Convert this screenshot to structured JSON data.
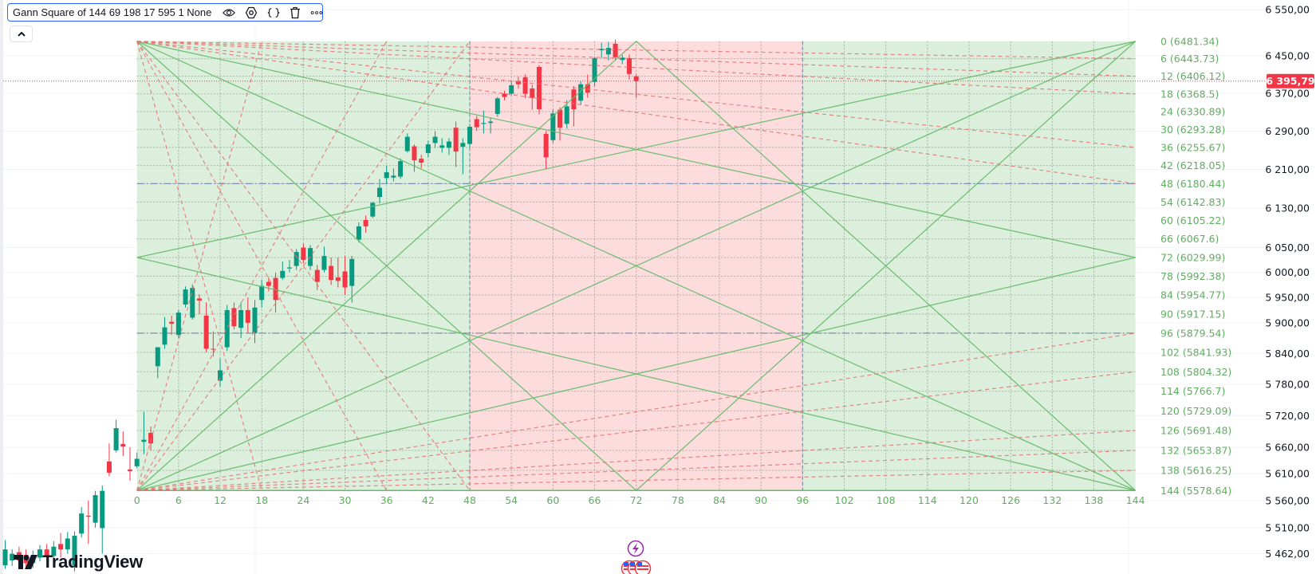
{
  "legend": {
    "title": "Gann Square of 144 69 198 17 595 1 None",
    "icons": [
      "eye-icon",
      "settings-icon",
      "source-code-icon",
      "trash-icon",
      "more-icon"
    ]
  },
  "collapse_button": {
    "icon": "chevron-up-icon"
  },
  "watermark": "TradingView",
  "colors": {
    "up": "#089981",
    "down": "#f23645",
    "gann_green_fill": "#dcefdc",
    "gann_red_fill": "#fcdcdc",
    "gann_line": "#66bb6a",
    "gann_dashed": "#e57373",
    "gann_label": "#5fae5f",
    "price_badge": "#f23645"
  },
  "price_axis": {
    "scale": "log",
    "ticks": [
      {
        "value": 6550,
        "label": "6 550,00"
      },
      {
        "value": 6450,
        "label": "6 450,00"
      },
      {
        "value": 6370,
        "label": "6 370,00"
      },
      {
        "value": 6290,
        "label": "6 290,00"
      },
      {
        "value": 6210,
        "label": "6 210,00"
      },
      {
        "value": 6130,
        "label": "6 130,00"
      },
      {
        "value": 6050,
        "label": "6 050,00"
      },
      {
        "value": 6000,
        "label": "6 000,00"
      },
      {
        "value": 5950,
        "label": "5 950,00"
      },
      {
        "value": 5900,
        "label": "5 900,00"
      },
      {
        "value": 5840,
        "label": "5 840,00"
      },
      {
        "value": 5780,
        "label": "5 780,00"
      },
      {
        "value": 5720,
        "label": "5 720,00"
      },
      {
        "value": 5660,
        "label": "5 660,00"
      },
      {
        "value": 5610,
        "label": "5 610,00"
      },
      {
        "value": 5560,
        "label": "5 560,00"
      },
      {
        "value": 5510,
        "label": "5 510,00"
      },
      {
        "value": 5462,
        "label": "5 462,00"
      }
    ],
    "last_price": {
      "value": 6395.79,
      "label": "6 395,79"
    }
  },
  "bottom_icons": [
    "lightning-icon",
    "us-flag-icon"
  ],
  "chart_data": {
    "type": "candlestick",
    "yscale": "log",
    "candle_fields": [
      "bar",
      "open",
      "high",
      "low",
      "close"
    ],
    "candles": [
      [
        -19,
        5441,
        5487,
        5435,
        5470
      ],
      [
        -18,
        5450,
        5470,
        5440,
        5462
      ],
      [
        -17,
        5465,
        5475,
        5440,
        5450
      ],
      [
        -16,
        5460,
        5470,
        5435,
        5445
      ],
      [
        -15,
        5445,
        5468,
        5436,
        5458
      ],
      [
        -14,
        5455,
        5478,
        5448,
        5470
      ],
      [
        -13,
        5470,
        5480,
        5450,
        5458
      ],
      [
        -12,
        5458,
        5485,
        5450,
        5475
      ],
      [
        -11,
        5480,
        5500,
        5455,
        5470
      ],
      [
        -10,
        5470,
        5502,
        5462,
        5490
      ],
      [
        -9,
        5441,
        5503,
        5430,
        5495
      ],
      [
        -8,
        5499,
        5548,
        5492,
        5536
      ],
      [
        -7,
        5532,
        5560,
        5480,
        5530
      ],
      [
        -6,
        5519,
        5578,
        5510,
        5570
      ],
      [
        -5,
        5509,
        5588,
        5462,
        5578
      ],
      [
        -4,
        5633,
        5667,
        5605,
        5612
      ],
      [
        -3,
        5654,
        5712,
        5650,
        5696
      ],
      [
        -2,
        5666,
        5690,
        5643,
        5661
      ],
      [
        -1,
        5618,
        5660,
        5597,
        5615
      ],
      [
        0,
        5624,
        5650,
        5620,
        5638
      ],
      [
        1,
        5670,
        5727,
        5647,
        5674
      ],
      [
        2,
        5687,
        5699,
        5654,
        5667
      ],
      [
        3,
        5815,
        5852,
        5792,
        5852
      ],
      [
        4,
        5857,
        5911,
        5849,
        5891
      ],
      [
        5,
        5902,
        5914,
        5876,
        5898
      ],
      [
        6,
        5876,
        5925,
        5870,
        5920
      ],
      [
        7,
        5936,
        5972,
        5930,
        5966
      ],
      [
        8,
        5910,
        5976,
        5906,
        5969
      ],
      [
        9,
        5948,
        5956,
        5917,
        5944
      ],
      [
        10,
        5914,
        5940,
        5842,
        5849
      ],
      [
        11,
        5849,
        5883,
        5834,
        5848
      ],
      [
        12,
        5787,
        5830,
        5775,
        5807
      ],
      [
        13,
        5852,
        5935,
        5845,
        5925
      ],
      [
        14,
        5929,
        5940,
        5887,
        5893
      ],
      [
        15,
        5890,
        5940,
        5870,
        5925
      ],
      [
        16,
        5925,
        5950,
        5880,
        5900
      ],
      [
        17,
        5880,
        5945,
        5860,
        5930
      ],
      [
        18,
        5945,
        5985,
        5930,
        5973
      ],
      [
        19,
        5981,
        5990,
        5962,
        5973
      ],
      [
        20,
        5989,
        6000,
        5920,
        5945
      ],
      [
        21,
        5989,
        6022,
        5985,
        6003
      ],
      [
        22,
        6008,
        6025,
        6000,
        6010
      ],
      [
        23,
        6013,
        6047,
        6005,
        6041
      ],
      [
        24,
        6050,
        6058,
        6018,
        6025
      ],
      [
        25,
        6013,
        6055,
        6005,
        6049
      ],
      [
        26,
        6005,
        6015,
        5965,
        5981
      ],
      [
        27,
        6005,
        6052,
        6000,
        6033
      ],
      [
        28,
        6013,
        6030,
        5975,
        5985
      ],
      [
        29,
        5990,
        6030,
        5970,
        5983
      ],
      [
        30,
        6002,
        6033,
        5955,
        5970
      ],
      [
        31,
        5973,
        6033,
        5940,
        6027
      ],
      [
        32,
        6066,
        6101,
        6060,
        6093
      ],
      [
        33,
        6106,
        6115,
        6080,
        6093
      ],
      [
        34,
        6113,
        6143,
        6110,
        6141
      ],
      [
        35,
        6153,
        6190,
        6140,
        6172
      ],
      [
        36,
        6192,
        6218,
        6180,
        6204
      ],
      [
        37,
        6193,
        6212,
        6185,
        6197
      ],
      [
        38,
        6195,
        6233,
        6190,
        6227
      ],
      [
        39,
        6248,
        6285,
        6245,
        6278
      ],
      [
        40,
        6258,
        6262,
        6205,
        6229
      ],
      [
        41,
        6232,
        6240,
        6212,
        6224
      ],
      [
        42,
        6244,
        6270,
        6235,
        6262
      ],
      [
        43,
        6265,
        6290,
        6255,
        6278
      ],
      [
        44,
        6255,
        6275,
        6245,
        6260
      ],
      [
        45,
        6255,
        6275,
        6240,
        6268
      ],
      [
        46,
        6297,
        6310,
        6215,
        6247
      ],
      [
        47,
        6257,
        6275,
        6200,
        6265
      ],
      [
        48,
        6263,
        6305,
        6255,
        6299
      ],
      [
        49,
        6315,
        6322,
        6290,
        6298
      ],
      [
        50,
        6305,
        6333,
        6285,
        6307
      ],
      [
        51,
        6307,
        6318,
        6285,
        6310
      ],
      [
        52,
        6326,
        6362,
        6320,
        6359
      ],
      [
        53,
        6369,
        6375,
        6355,
        6362
      ],
      [
        54,
        6369,
        6395,
        6365,
        6387
      ],
      [
        55,
        6396,
        6405,
        6380,
        6389
      ],
      [
        56,
        6404,
        6410,
        6360,
        6369
      ],
      [
        57,
        6380,
        6388,
        6335,
        6360
      ],
      [
        58,
        6426,
        6430,
        6325,
        6336
      ],
      [
        59,
        6284,
        6290,
        6210,
        6235
      ],
      [
        60,
        6271,
        6335,
        6265,
        6327
      ],
      [
        61,
        6335,
        6340,
        6270,
        6297
      ],
      [
        62,
        6305,
        6355,
        6295,
        6342
      ],
      [
        63,
        6378,
        6385,
        6300,
        6336
      ],
      [
        64,
        6354,
        6395,
        6345,
        6389
      ],
      [
        65,
        6389,
        6410,
        6360,
        6371
      ],
      [
        66,
        6394,
        6448,
        6385,
        6445
      ],
      [
        67,
        6462,
        6478,
        6445,
        6465
      ],
      [
        68,
        6453,
        6480,
        6440,
        6467
      ],
      [
        69,
        6476,
        6485,
        6440,
        6447
      ],
      [
        70,
        6441,
        6452,
        6432,
        6446
      ],
      [
        71,
        6445,
        6453,
        6399,
        6411
      ],
      [
        72,
        6406,
        6410,
        6360,
        6395.79
      ]
    ],
    "gann_box": {
      "size": 144,
      "top_price": 6481.34,
      "bottom_price": 5578.64,
      "highlight_zone_bars": [
        48,
        96
      ],
      "levels": [
        {
          "label": "0 (6481.34)",
          "price": 6481.34
        },
        {
          "label": "6 (6443.73)",
          "price": 6443.73
        },
        {
          "label": "12 (6406.12)",
          "price": 6406.12
        },
        {
          "label": "18 (6368.5)",
          "price": 6368.5
        },
        {
          "label": "24 (6330.89)",
          "price": 6330.89
        },
        {
          "label": "30 (6293.28)",
          "price": 6293.28
        },
        {
          "label": "36 (6255.67)",
          "price": 6255.67
        },
        {
          "label": "42 (6218.05)",
          "price": 6218.05
        },
        {
          "label": "48 (6180.44)",
          "price": 6180.44
        },
        {
          "label": "54 (6142.83)",
          "price": 6142.83
        },
        {
          "label": "60 (6105.22)",
          "price": 6105.22
        },
        {
          "label": "66 (6067.6)",
          "price": 6067.6
        },
        {
          "label": "72 (6029.99)",
          "price": 6029.99
        },
        {
          "label": "78 (5992.38)",
          "price": 5992.38
        },
        {
          "label": "84 (5954.77)",
          "price": 5954.77
        },
        {
          "label": "90 (5917.15)",
          "price": 5917.15
        },
        {
          "label": "96 (5879.54)",
          "price": 5879.54
        },
        {
          "label": "102 (5841.93)",
          "price": 5841.93
        },
        {
          "label": "108 (5804.32)",
          "price": 5804.32
        },
        {
          "label": "114 (5766.7)",
          "price": 5766.7
        },
        {
          "label": "120 (5729.09)",
          "price": 5729.09
        },
        {
          "label": "126 (5691.48)",
          "price": 5691.48
        },
        {
          "label": "132 (5653.87)",
          "price": 5653.87
        },
        {
          "label": "138 (5616.25)",
          "price": 5616.25
        },
        {
          "label": "144 (5578.64)",
          "price": 5578.64
        }
      ],
      "bar_labels": [
        "0",
        "6",
        "12",
        "18",
        "24",
        "30",
        "36",
        "42",
        "48",
        "54",
        "60",
        "66",
        "72",
        "78",
        "84",
        "90",
        "96",
        "102",
        "108",
        "114",
        "120",
        "126",
        "132",
        "138",
        "144"
      ]
    }
  }
}
